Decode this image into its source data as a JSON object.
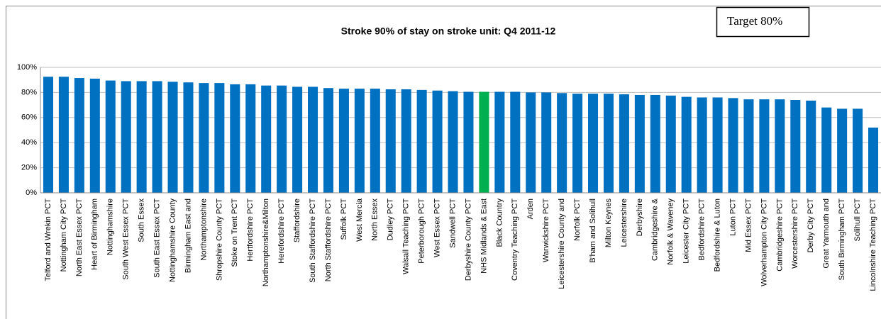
{
  "chart_data": {
    "type": "bar",
    "title": "Stroke  90% of stay on stroke unit: Q4 2011-12",
    "annotation": "Target 80%",
    "categories": [
      "Telford and Wrekin PCT",
      "Nottingham City PCT",
      "North East Essex PCT",
      "Heart of Birmingham",
      "Nottinghamshire",
      "South West Essex PCT",
      "South Essex",
      "South East Essex PCT",
      "Nottinghamshire County",
      "Birmingham East and",
      "Northamptonshire",
      "Shropshire County PCT",
      "Stoke on Trent PCT",
      "Hertfordshire PCT",
      "Northamptonshire&Milton",
      "Herefordshire PCT",
      "Staffordshire",
      "South Staffordshire PCT",
      "North Staffordshire PCT",
      "Suffolk PCT",
      "West Mercia",
      "North Essex",
      "Dudley PCT",
      "Walsall Teaching PCT",
      "Peterborough PCT",
      "West Essex PCT",
      "Sandwell PCT",
      "Derbyshire County PCT",
      "NHS Midlands & East",
      "Black Country",
      "Coventry Teaching PCT",
      "Arden",
      "Warwickshire PCT",
      "Leicestershire County and",
      "Norfolk PCT",
      "B'ham and Solihull",
      "Milton Keynes",
      "Leicestershire",
      "Derbyshire",
      "Cambridgeshire &",
      "Norfolk & Waveney",
      "Leicester City PCT",
      "Bedfordshire PCT",
      "Bedfordshire & Luton",
      "Luton PCT",
      "Mid Essex PCT",
      "Wolverhampton City PCT",
      "Cambridgeshire PCT",
      "Worcestershire PCT",
      "Derby City PCT",
      "Great Yarmouth and",
      "South Birmingham PCT",
      "Solihull PCT",
      "Lincolnshire Teaching PCT"
    ],
    "values": [
      92.5,
      92.5,
      91.5,
      91,
      89.5,
      89,
      89,
      89,
      88.5,
      88,
      87.5,
      87.5,
      86.5,
      86.5,
      85.5,
      85.5,
      84.5,
      84.5,
      83.5,
      83,
      83,
      83,
      82.5,
      82.5,
      82,
      81.5,
      81,
      80.5,
      80.5,
      80.5,
      80.5,
      80,
      80,
      79.5,
      79,
      79,
      79,
      78.5,
      78,
      78,
      77.5,
      76.5,
      76,
      76,
      75.5,
      74.5,
      74.5,
      74.5,
      74,
      73.5,
      68,
      67,
      67,
      52
    ],
    "colors": [
      "#0070c0",
      "#0070c0",
      "#0070c0",
      "#0070c0",
      "#0070c0",
      "#0070c0",
      "#0070c0",
      "#0070c0",
      "#0070c0",
      "#0070c0",
      "#0070c0",
      "#0070c0",
      "#0070c0",
      "#0070c0",
      "#0070c0",
      "#0070c0",
      "#0070c0",
      "#0070c0",
      "#0070c0",
      "#0070c0",
      "#0070c0",
      "#0070c0",
      "#0070c0",
      "#0070c0",
      "#0070c0",
      "#0070c0",
      "#0070c0",
      "#0070c0",
      "#00b050",
      "#0070c0",
      "#0070c0",
      "#0070c0",
      "#0070c0",
      "#0070c0",
      "#0070c0",
      "#0070c0",
      "#0070c0",
      "#0070c0",
      "#0070c0",
      "#0070c0",
      "#0070c0",
      "#0070c0",
      "#0070c0",
      "#0070c0",
      "#0070c0",
      "#0070c0",
      "#0070c0",
      "#0070c0",
      "#0070c0",
      "#0070c0",
      "#0070c0",
      "#0070c0",
      "#0070c0",
      "#0070c0"
    ],
    "ylim": [
      0,
      100
    ],
    "yticks": [
      {
        "value": 0,
        "label": "0%"
      },
      {
        "value": 20,
        "label": "20%"
      },
      {
        "value": 40,
        "label": "40%"
      },
      {
        "value": 60,
        "label": "60%"
      },
      {
        "value": 80,
        "label": "80%"
      },
      {
        "value": 100,
        "label": "100%"
      }
    ],
    "grid": true
  }
}
